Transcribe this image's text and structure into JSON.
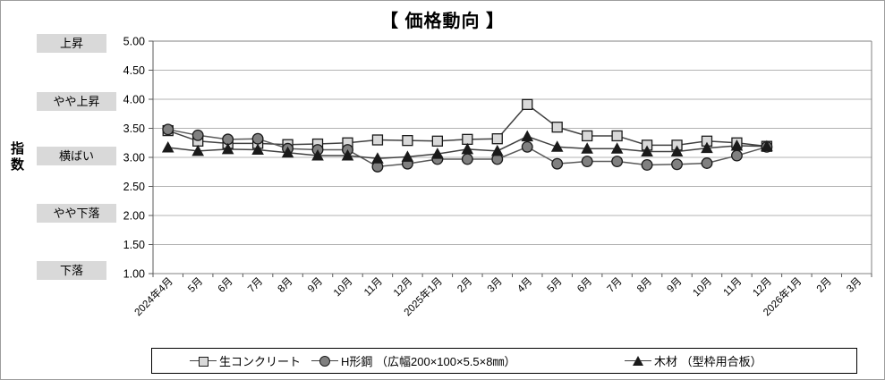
{
  "title": "【 価格動向 】",
  "y_axis_title": "指数",
  "chart_data": {
    "type": "line",
    "title": "【 価格動向 】",
    "ylabel": "指数",
    "ylim": [
      1.0,
      5.0
    ],
    "y_tick_step": 0.5,
    "grid": true,
    "legend_position": "bottom",
    "y_tick_labels": [
      "5.00",
      "4.50",
      "4.00",
      "3.50",
      "3.00",
      "2.50",
      "2.00",
      "1.50",
      "1.00"
    ],
    "y_level_labels": [
      {
        "label": "上昇",
        "value": 5.0
      },
      {
        "label": "やや上昇",
        "value": 4.0
      },
      {
        "label": "横ばい",
        "value": 3.0
      },
      {
        "label": "やや下落",
        "value": 2.0
      },
      {
        "label": "下落",
        "value": 1.0
      }
    ],
    "categories": [
      "2024年4月",
      "5月",
      "6月",
      "7月",
      "8月",
      "9月",
      "10月",
      "11月",
      "12月",
      "2025年1月",
      "2月",
      "3月",
      "4月",
      "5月",
      "6月",
      "7月",
      "8月",
      "9月",
      "10月",
      "11月",
      "12月",
      "2026年1月",
      "2月",
      "3月"
    ],
    "series": [
      {
        "name": "生コンクリート",
        "marker": "square",
        "marker_fill": "#d9d9d9",
        "marker_stroke": "#1a1a1a",
        "line_color": "#404040",
        "values": [
          3.46,
          3.28,
          3.24,
          3.24,
          3.22,
          3.23,
          3.25,
          3.3,
          3.29,
          3.28,
          3.31,
          3.32,
          3.91,
          3.52,
          3.37,
          3.37,
          3.21,
          3.21,
          3.28,
          3.25,
          3.19,
          null,
          null,
          null
        ]
      },
      {
        "name": "H形鋼 （広幅200×100×5.5×8㎜）",
        "marker": "circle",
        "marker_fill": "#808080",
        "marker_stroke": "#1a1a1a",
        "line_color": "#595959",
        "values": [
          3.48,
          3.38,
          3.31,
          3.32,
          3.15,
          3.13,
          3.13,
          2.84,
          2.89,
          2.97,
          2.97,
          2.97,
          3.18,
          2.89,
          2.93,
          2.93,
          2.87,
          2.88,
          2.9,
          3.03,
          3.18,
          null,
          null,
          null
        ]
      },
      {
        "name": "木材 （型枠用合板）",
        "marker": "triangle",
        "marker_fill": "#1a1a1a",
        "marker_stroke": "#1a1a1a",
        "line_color": "#404040",
        "values": [
          3.17,
          3.11,
          3.14,
          3.13,
          3.08,
          3.03,
          3.03,
          2.98,
          3.01,
          3.06,
          3.14,
          3.11,
          3.36,
          3.18,
          3.15,
          3.15,
          3.1,
          3.1,
          3.16,
          3.2,
          3.19,
          null,
          null,
          null
        ]
      }
    ],
    "colors": {
      "gridline": "#b3b3b3",
      "axis": "#595959",
      "plot_border": "#808080",
      "level_box_bg": "#d9d9d9"
    }
  }
}
